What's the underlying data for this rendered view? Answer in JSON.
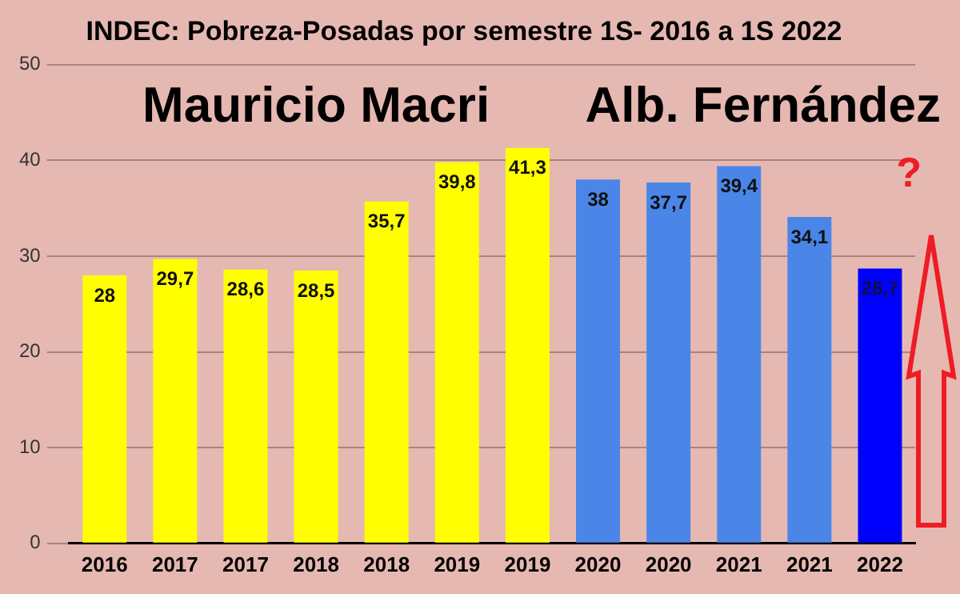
{
  "chart_data": {
    "type": "bar",
    "title": "INDEC: Pobreza-Posadas por semestre 1S- 2016 a 1S 2022",
    "categories": [
      "2016",
      "2017",
      "2017",
      "2018",
      "2018",
      "2019",
      "2019",
      "2020",
      "2020",
      "2021",
      "2021",
      "2022"
    ],
    "values": [
      28,
      29.7,
      28.6,
      28.5,
      35.7,
      39.8,
      41.3,
      38,
      37.7,
      39.4,
      34.1,
      28.7
    ],
    "value_labels": [
      "28",
      "29,7",
      "28,6",
      "28,5",
      "35,7",
      "39,8",
      "41,3",
      "38",
      "37,7",
      "39,4",
      "34,1",
      "28,7"
    ],
    "colors": [
      "#ffff00",
      "#ffff00",
      "#ffff00",
      "#ffff00",
      "#ffff00",
      "#ffff00",
      "#ffff00",
      "#4a86e8",
      "#4a86e8",
      "#4a86e8",
      "#4a86e8",
      "#0000ff"
    ],
    "ylim": [
      0,
      50
    ],
    "yticks": [
      0,
      10,
      20,
      30,
      40,
      50
    ],
    "grid": "y",
    "legend": false,
    "annotations": [
      "Mauricio Macri",
      "Alb. Fernández",
      "?"
    ]
  }
}
